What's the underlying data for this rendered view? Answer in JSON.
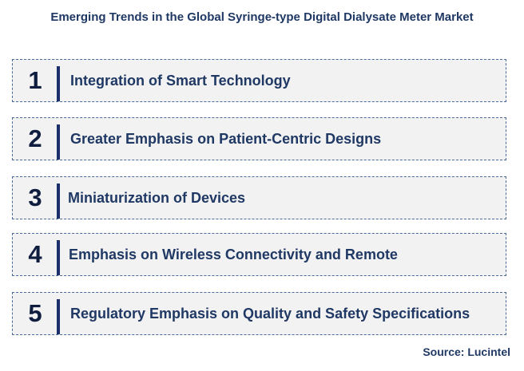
{
  "title": "Emerging Trends in the Global Syringe-type Digital Dialysate Meter Market",
  "trends": [
    {
      "number": "1",
      "label": "Integration of Smart Technology"
    },
    {
      "number": "2",
      "label": "Greater Emphasis on Patient-Centric Designs"
    },
    {
      "number": "3",
      "label": "Miniaturization of Devices"
    },
    {
      "number": "4",
      "label": "Emphasis on Wireless Connectivity and Remote"
    },
    {
      "number": "5",
      "label": "Regulatory Emphasis on Quality and Safety Specifications"
    }
  ],
  "source": "Source: Lucintel",
  "colors": {
    "text_primary": "#1f3864",
    "number": "#0f1d3f",
    "divider": "#1a2f6b",
    "box_fill": "#f2f2f2",
    "box_border": "#4a6a9a"
  }
}
